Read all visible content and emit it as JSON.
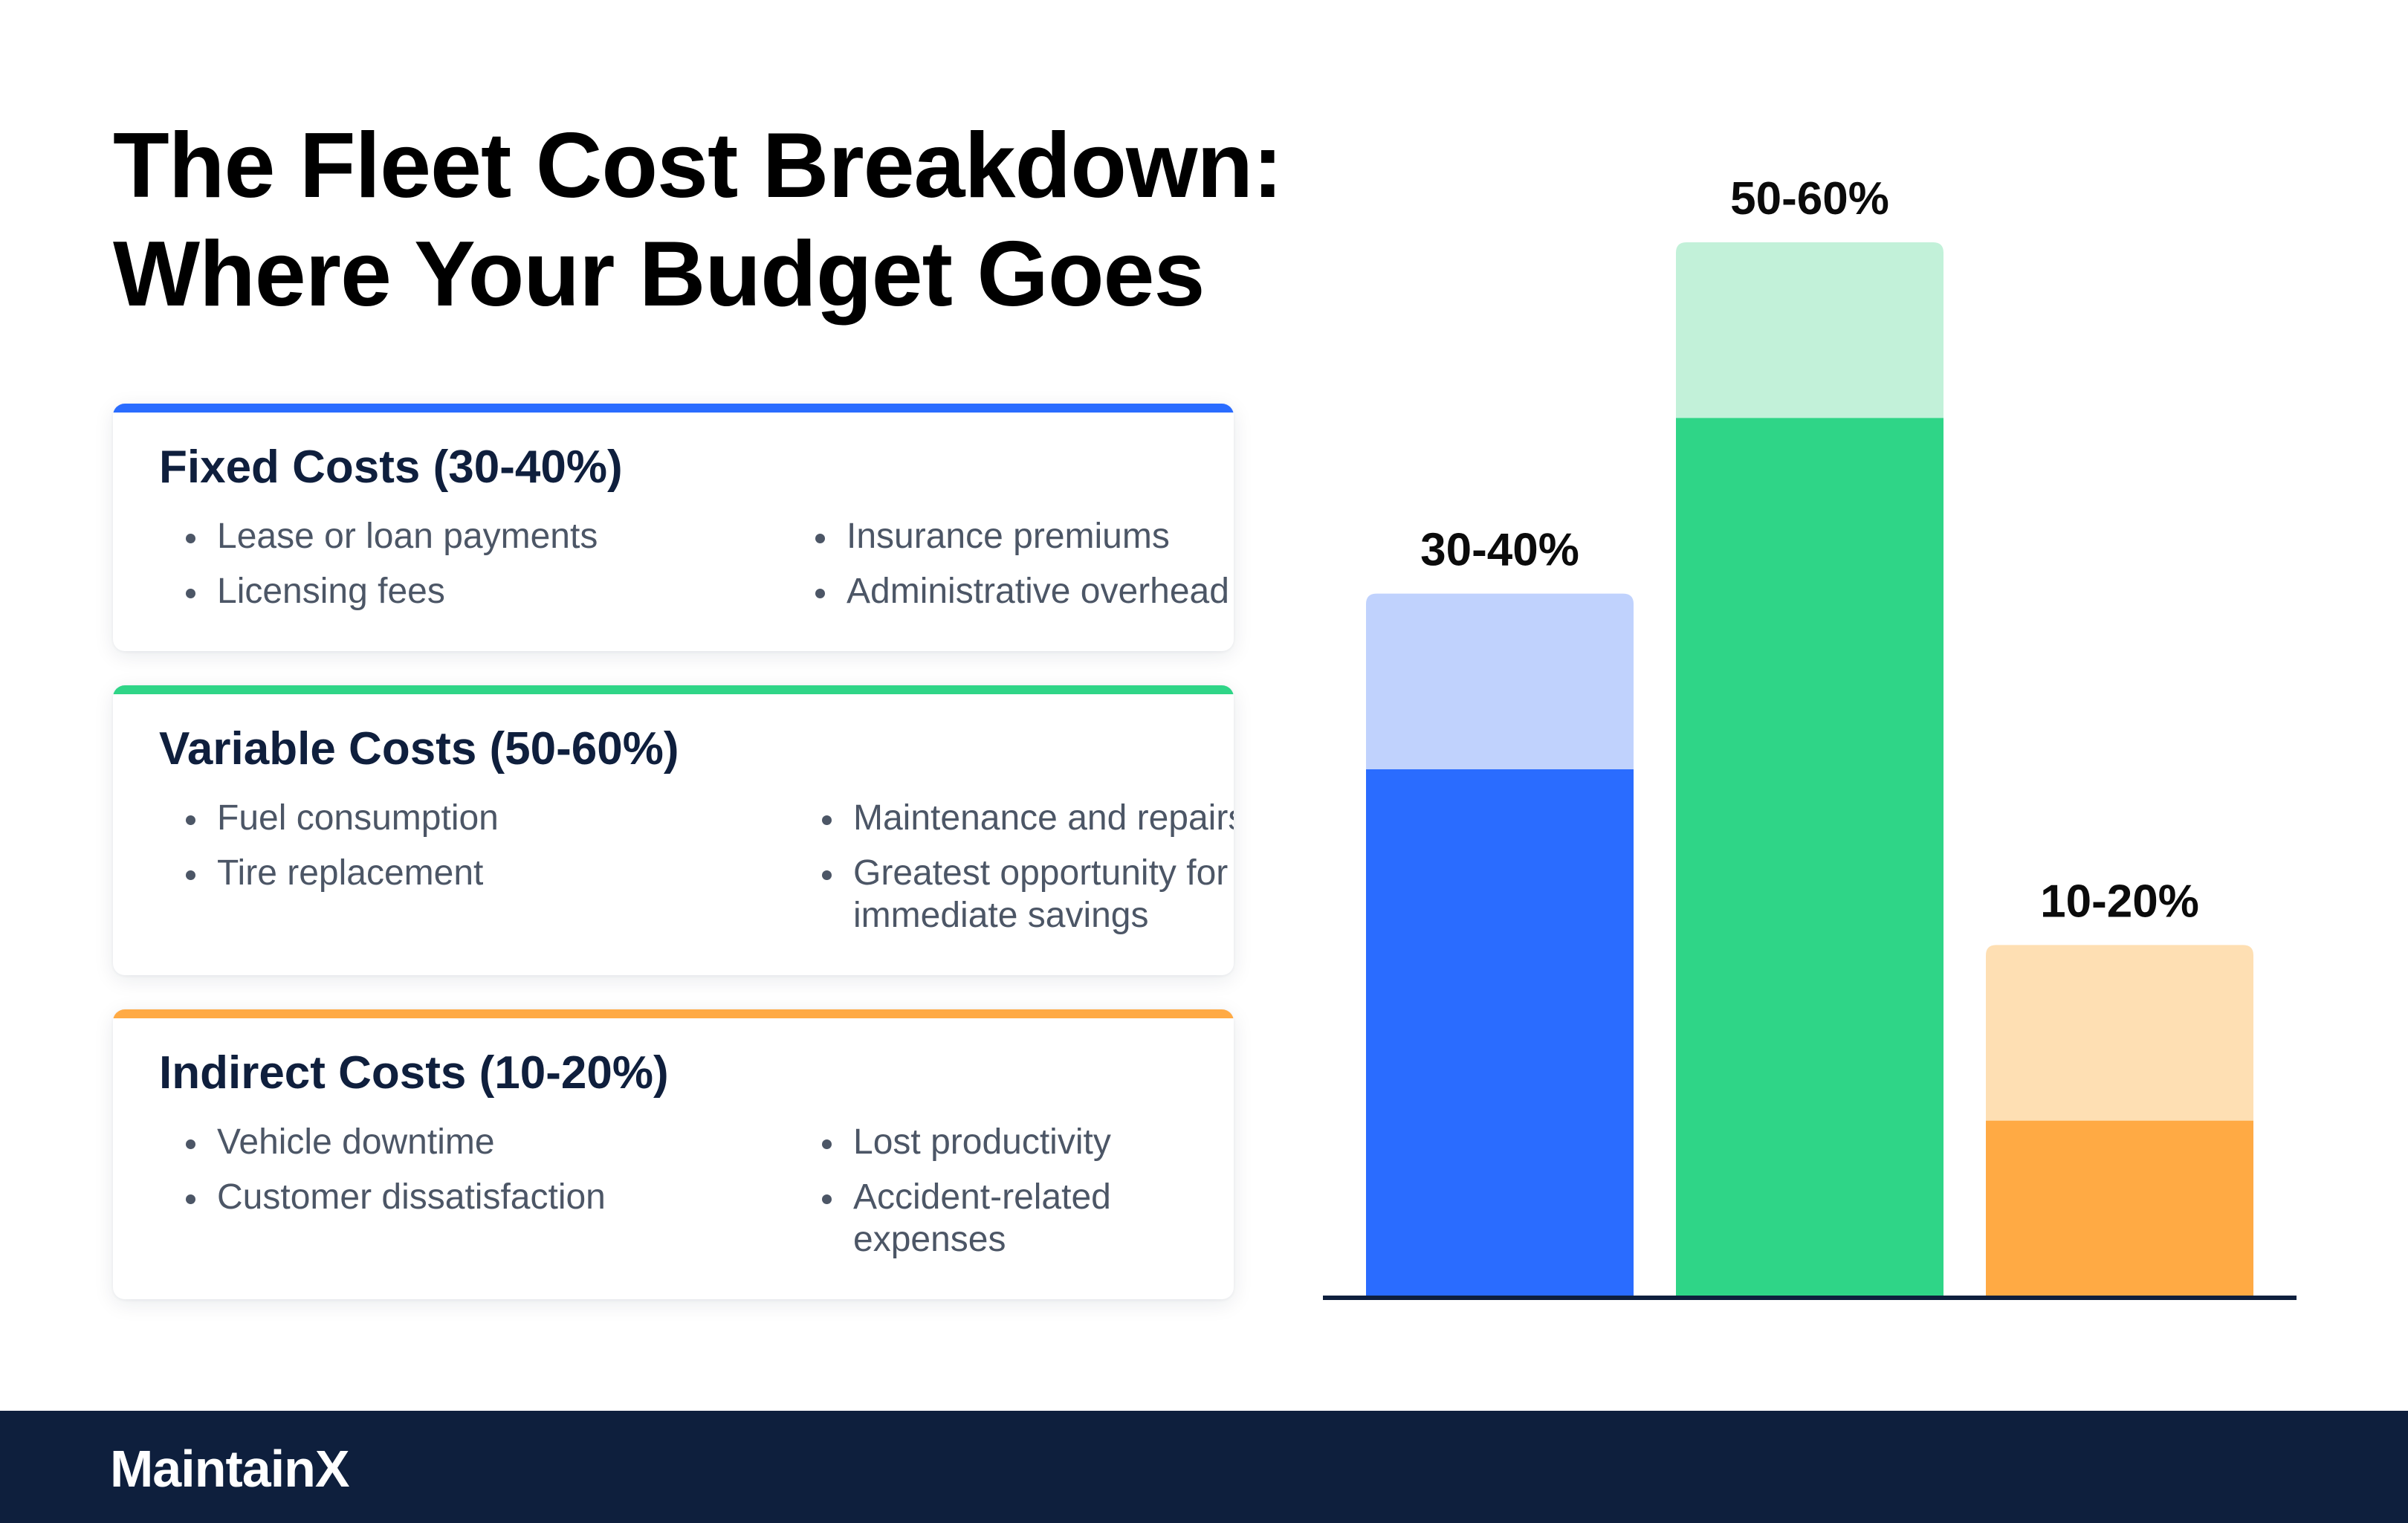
{
  "title": {
    "line1": "The Fleet Cost Breakdown:",
    "line2": "Where Your Budget Goes"
  },
  "cards": [
    {
      "heading": "Fixed Costs (30-40%)",
      "color": "#2a6cff",
      "col1": [
        "Lease or loan payments",
        "Licensing fees"
      ],
      "col2": [
        "Insurance premiums",
        "Administrative overhead"
      ]
    },
    {
      "heading": "Variable Costs (50-60%)",
      "color": "#2fd587",
      "col1": [
        "Fuel consumption",
        "Tire replacement"
      ],
      "col2": [
        "Maintenance and repairs",
        "Greatest opportunity for",
        "immediate savings"
      ]
    },
    {
      "heading": "Indirect Costs (10-20%)",
      "color": "#ffaa44",
      "col1": [
        "Vehicle downtime",
        "Customer dissatisfaction"
      ],
      "col2": [
        "Lost productivity",
        "Accident-related",
        "expenses"
      ]
    }
  ],
  "chart_data": {
    "type": "bar",
    "stacked_range": true,
    "ylim": [
      0,
      60
    ],
    "bars": [
      {
        "label": "30-40%",
        "low": 30,
        "high": 40,
        "color_solid": "#2a6cff",
        "color_light": "#c0d2fd"
      },
      {
        "label": "50-60%",
        "low": 50,
        "high": 60,
        "color_solid": "#2fd587",
        "color_light": "#c2f1d9"
      },
      {
        "label": "10-20%",
        "low": 10,
        "high": 20,
        "color_solid": "#ffaa44",
        "color_light": "#fedfb3"
      }
    ]
  },
  "footer": {
    "logo_text": "Maintain",
    "logo_mark": "X"
  }
}
